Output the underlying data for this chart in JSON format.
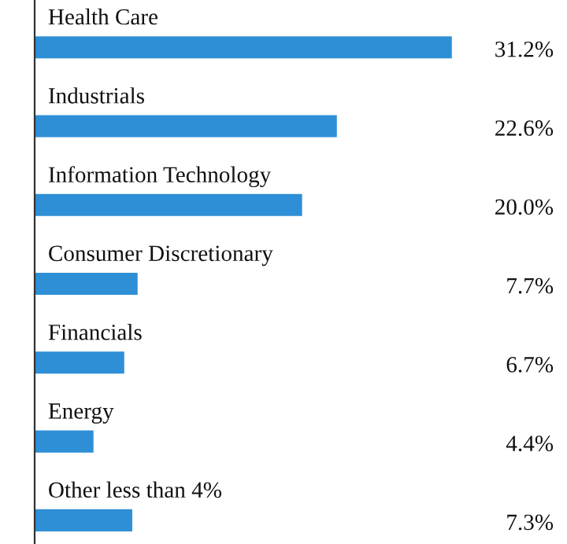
{
  "chart_data": {
    "type": "bar",
    "orientation": "horizontal",
    "categories": [
      "Health Care",
      "Industrials",
      "Information Technology",
      "Consumer Discretionary",
      "Financials",
      "Energy",
      "Other less than 4%"
    ],
    "values": [
      31.2,
      22.6,
      20.0,
      7.7,
      6.7,
      4.4,
      7.3
    ],
    "value_labels": [
      "31.2%",
      "22.6%",
      "20.0%",
      "7.7%",
      "6.7%",
      "4.4%",
      "7.3%"
    ],
    "color": "#2e8fd6"
  }
}
